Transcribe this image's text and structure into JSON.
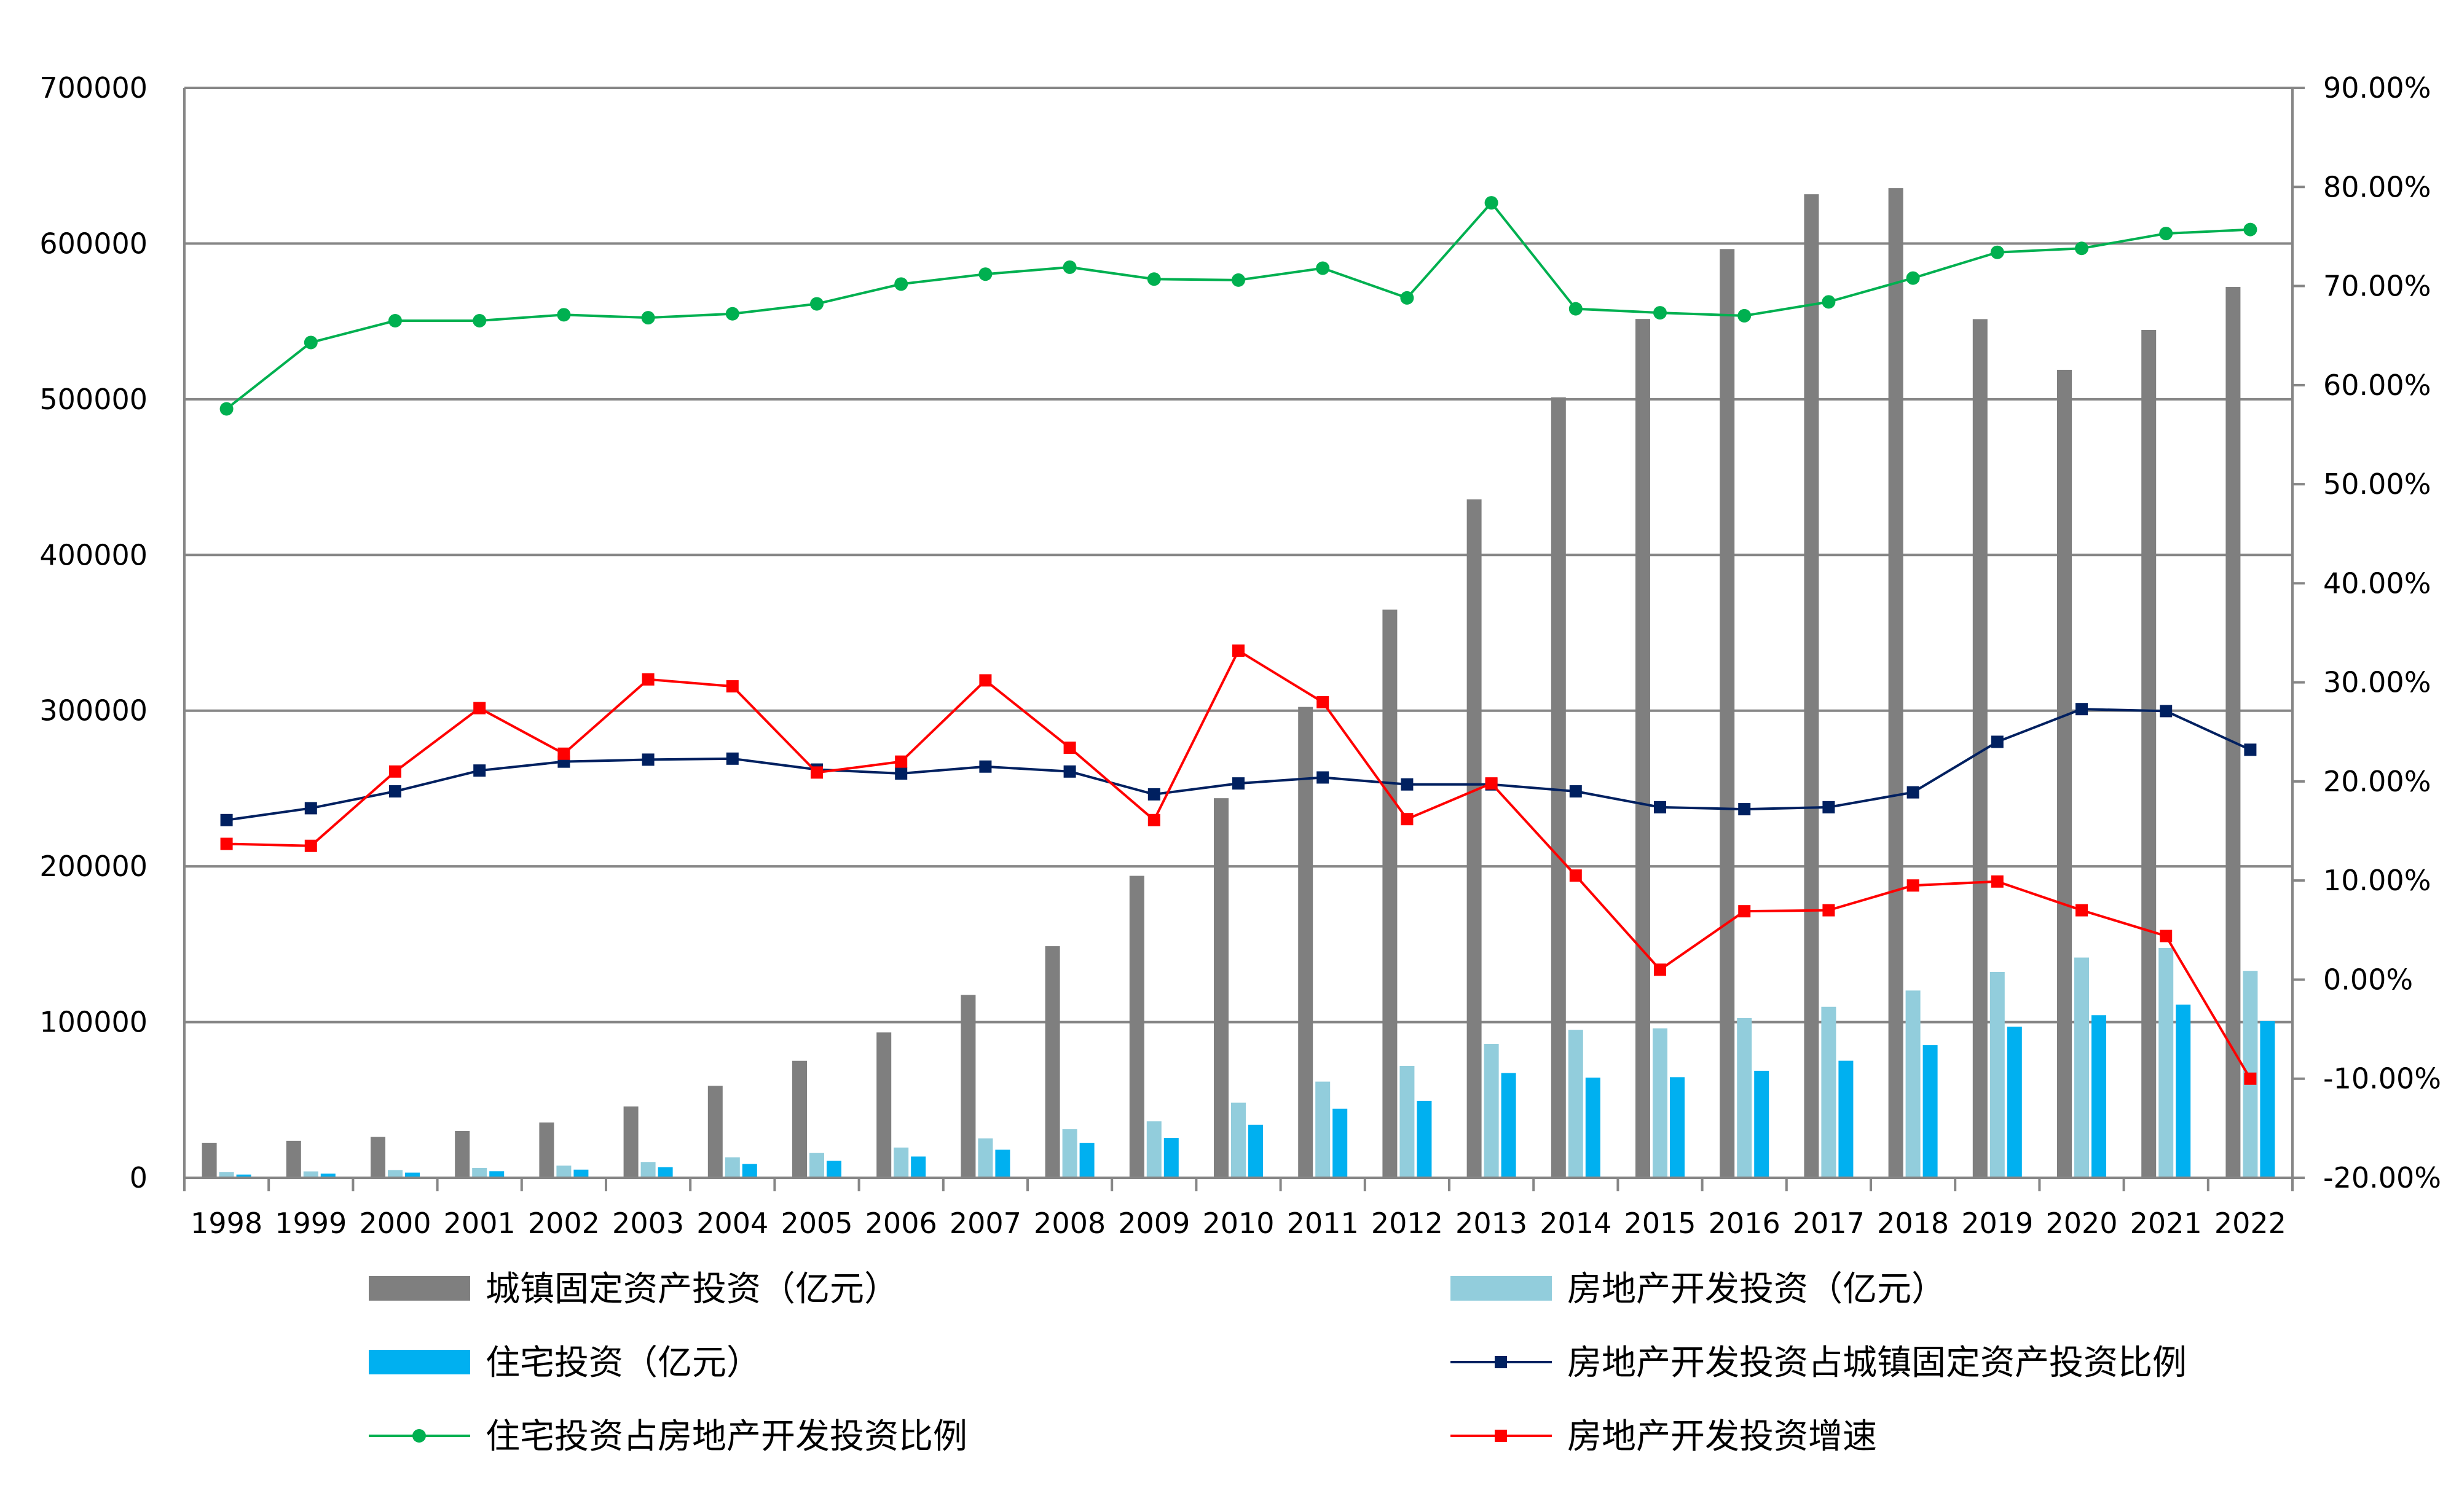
{
  "chart_data": {
    "type": "bar",
    "categories": [
      "1998",
      "1999",
      "2000",
      "2001",
      "2002",
      "2003",
      "2004",
      "2005",
      "2006",
      "2007",
      "2008",
      "2009",
      "2010",
      "2011",
      "2012",
      "2013",
      "2014",
      "2015",
      "2016",
      "2017",
      "2018",
      "2019",
      "2020",
      "2021",
      "2022"
    ],
    "y_left_ticks": [
      "0",
      "100000",
      "200000",
      "300000",
      "400000",
      "500000",
      "600000",
      "700000"
    ],
    "y_right_ticks": [
      "-20.00%",
      "-10.00%",
      "0.00%",
      "10.00%",
      "20.00%",
      "30.00%",
      "40.00%",
      "50.00%",
      "60.00%",
      "70.00%",
      "80.00%",
      "90.00%"
    ],
    "ylim_left": [
      0,
      700000
    ],
    "ylim_right": [
      -0.2,
      0.9
    ],
    "grid": true,
    "legend_position": "bottom",
    "series": [
      {
        "name": "城镇固定资产投资（亿元）",
        "type": "bar",
        "axis": "left",
        "color": "#7f7f7f",
        "values": [
          22491,
          23732,
          26222,
          30001,
          35489,
          45812,
          59028,
          75095,
          93369,
          117464,
          148738,
          193920,
          243798,
          302396,
          364854,
          435747,
          501265,
          551590,
          596501,
          631684,
          635636,
          551478,
          518907,
          544547,
          572138
        ]
      },
      {
        "name": "房地产开发投资（亿元）",
        "type": "bar",
        "axis": "left",
        "color": "#92cddc",
        "values": [
          3614,
          4103,
          4984,
          6344,
          7791,
          10154,
          13158,
          15909,
          19423,
          25289,
          31203,
          36242,
          48259,
          61740,
          71804,
          86013,
          95036,
          95979,
          102581,
          109799,
          120264,
          132194,
          141443,
          147602,
          132895
        ]
      },
      {
        "name": "住宅投资（亿元）",
        "type": "bar",
        "axis": "left",
        "color": "#00b0f0",
        "values": [
          2082,
          2638,
          3312,
          4217,
          5228,
          6777,
          8837,
          10861,
          13638,
          18005,
          22441,
          25619,
          34026,
          44320,
          49374,
          67295,
          64352,
          64595,
          68704,
          75148,
          85192,
          97071,
          104446,
          111173,
          100646
        ]
      },
      {
        "name": "房地产开发投资占城镇固定资产投资比例",
        "type": "line",
        "axis": "right",
        "color": "#002060",
        "marker": "square",
        "values": [
          0.161,
          0.173,
          0.19,
          0.211,
          0.22,
          0.222,
          0.223,
          0.212,
          0.208,
          0.215,
          0.21,
          0.187,
          0.198,
          0.204,
          0.197,
          0.197,
          0.19,
          0.174,
          0.172,
          0.174,
          0.189,
          0.24,
          0.273,
          0.271,
          0.232
        ]
      },
      {
        "name": "住宅投资占房地产开发投资比例",
        "type": "line",
        "axis": "right",
        "color": "#00b050",
        "marker": "circle",
        "values": [
          0.576,
          0.643,
          0.665,
          0.665,
          0.671,
          0.668,
          0.672,
          0.682,
          0.702,
          0.712,
          0.719,
          0.707,
          0.706,
          0.718,
          0.688,
          0.784,
          0.677,
          0.673,
          0.67,
          0.684,
          0.708,
          0.734,
          0.738,
          0.753,
          0.757
        ]
      },
      {
        "name": "房地产开发投资增速",
        "type": "line",
        "axis": "right",
        "color": "#ff0000",
        "marker": "square",
        "values": [
          0.137,
          0.135,
          0.21,
          0.274,
          0.228,
          0.303,
          0.296,
          0.209,
          0.22,
          0.302,
          0.234,
          0.161,
          0.332,
          0.28,
          0.162,
          0.198,
          0.105,
          0.01,
          0.069,
          0.07,
          0.095,
          0.099,
          0.07,
          0.044,
          -0.1
        ]
      }
    ]
  }
}
